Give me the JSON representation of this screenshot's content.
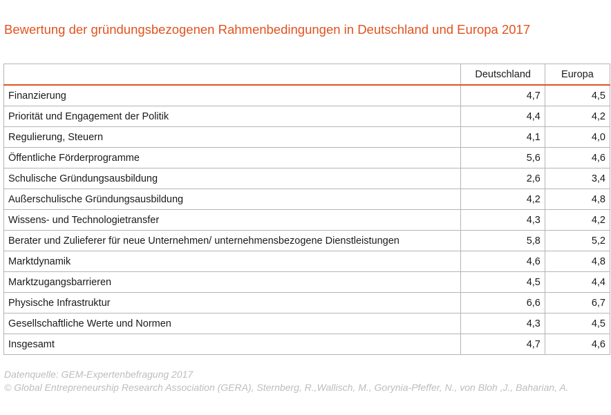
{
  "chart_data": {
    "type": "table",
    "title": "Bewertung der gründungsbezogenen Rahmenbedingungen in Deutschland und Europa 2017",
    "columns": [
      "",
      "Deutschland",
      "Europa"
    ],
    "rows": [
      {
        "label": "Finanzierung",
        "deutschland": "4,7",
        "europa": "4,5"
      },
      {
        "label": "Priorität und Engagement der Politik",
        "deutschland": "4,4",
        "europa": "4,2"
      },
      {
        "label": "Regulierung, Steuern",
        "deutschland": "4,1",
        "europa": "4,0"
      },
      {
        "label": "Öffentliche Förderprogramme",
        "deutschland": "5,6",
        "europa": "4,6"
      },
      {
        "label": "Schulische Gründungsausbildung",
        "deutschland": "2,6",
        "europa": "3,4"
      },
      {
        "label": "Außerschulische Gründungsausbildung",
        "deutschland": "4,2",
        "europa": "4,8"
      },
      {
        "label": "Wissens- und Technologietransfer",
        "deutschland": "4,3",
        "europa": "4,2"
      },
      {
        "label": "Berater und Zulieferer für neue Unternehmen/ unternehmensbezogene Dienstleistungen",
        "deutschland": "5,8",
        "europa": "5,2"
      },
      {
        "label": "Marktdynamik",
        "deutschland": "4,6",
        "europa": "4,8"
      },
      {
        "label": "Marktzugangsbarrieren",
        "deutschland": "4,5",
        "europa": "4,4"
      },
      {
        "label": "Physische Infrastruktur",
        "deutschland": "6,6",
        "europa": "6,7"
      },
      {
        "label": "Gesellschaftliche Werte und Normen",
        "deutschland": "4,3",
        "europa": "4,5"
      },
      {
        "label": "Insgesamt",
        "deutschland": "4,7",
        "europa": "4,6"
      }
    ],
    "source_line1": "Datenquelle: GEM-Expertenbefragung 2017",
    "source_line2": "© Global Entrepreneurship Research Association (GERA), Sternberg, R.,Wallisch, M., Gorynia-Pfeffer, N., von Bloh ,J., Baharian, A."
  },
  "colors": {
    "accent": "#e0531f",
    "grid": "#b4b4b4",
    "source_text": "#bdbdbd"
  }
}
